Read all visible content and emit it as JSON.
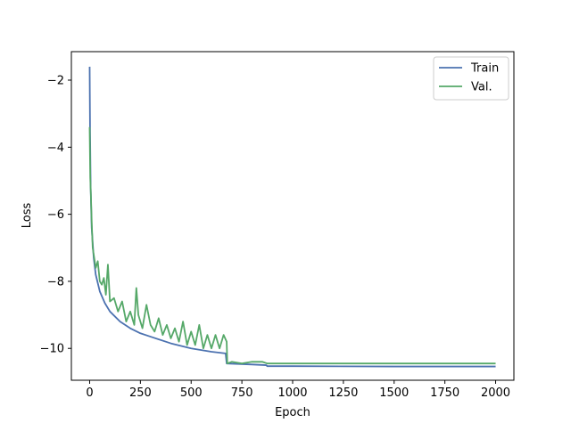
{
  "chart_data": {
    "type": "line",
    "title": "",
    "xlabel": "Epoch",
    "ylabel": "Loss",
    "xlim": [
      -90,
      2090
    ],
    "ylim": [
      -10.95,
      -1.15
    ],
    "x_ticks": [
      0,
      250,
      500,
      750,
      1000,
      1250,
      1500,
      1750,
      2000
    ],
    "y_ticks": [
      -10,
      -8,
      -6,
      -4,
      -2
    ],
    "y_tick_labels": [
      "−10",
      "−8",
      "−6",
      "−4",
      "−2"
    ],
    "grid": false,
    "legend": {
      "position": "top-right"
    },
    "series": [
      {
        "name": "Train",
        "color": "#4c72b0",
        "points": [
          [
            0,
            -1.6
          ],
          [
            2,
            -3.5
          ],
          [
            5,
            -5.2
          ],
          [
            10,
            -6.4
          ],
          [
            20,
            -7.3
          ],
          [
            30,
            -7.8
          ],
          [
            50,
            -8.3
          ],
          [
            75,
            -8.65
          ],
          [
            100,
            -8.9
          ],
          [
            150,
            -9.2
          ],
          [
            200,
            -9.4
          ],
          [
            250,
            -9.55
          ],
          [
            300,
            -9.65
          ],
          [
            400,
            -9.85
          ],
          [
            500,
            -10.0
          ],
          [
            600,
            -10.1
          ],
          [
            670,
            -10.15
          ],
          [
            675,
            -10.45
          ],
          [
            800,
            -10.48
          ],
          [
            870,
            -10.5
          ],
          [
            875,
            -10.53
          ],
          [
            1000,
            -10.53
          ],
          [
            1500,
            -10.54
          ],
          [
            2000,
            -10.54
          ]
        ]
      },
      {
        "name": "Val.",
        "color": "#55a868",
        "points": [
          [
            0,
            -3.4
          ],
          [
            3,
            -4.9
          ],
          [
            6,
            -5.4
          ],
          [
            10,
            -6.2
          ],
          [
            15,
            -7.0
          ],
          [
            20,
            -7.2
          ],
          [
            30,
            -7.6
          ],
          [
            40,
            -7.4
          ],
          [
            50,
            -8.0
          ],
          [
            60,
            -8.1
          ],
          [
            70,
            -7.9
          ],
          [
            80,
            -8.4
          ],
          [
            90,
            -7.5
          ],
          [
            100,
            -8.6
          ],
          [
            120,
            -8.5
          ],
          [
            140,
            -8.9
          ],
          [
            160,
            -8.6
          ],
          [
            180,
            -9.2
          ],
          [
            200,
            -8.9
          ],
          [
            220,
            -9.3
          ],
          [
            230,
            -8.2
          ],
          [
            240,
            -9.0
          ],
          [
            260,
            -9.4
          ],
          [
            280,
            -8.7
          ],
          [
            300,
            -9.3
          ],
          [
            320,
            -9.5
          ],
          [
            340,
            -9.1
          ],
          [
            360,
            -9.6
          ],
          [
            380,
            -9.3
          ],
          [
            400,
            -9.7
          ],
          [
            420,
            -9.4
          ],
          [
            440,
            -9.8
          ],
          [
            460,
            -9.2
          ],
          [
            480,
            -9.9
          ],
          [
            500,
            -9.5
          ],
          [
            520,
            -9.9
          ],
          [
            540,
            -9.3
          ],
          [
            560,
            -10.0
          ],
          [
            580,
            -9.6
          ],
          [
            600,
            -10.0
          ],
          [
            620,
            -9.6
          ],
          [
            640,
            -10.0
          ],
          [
            660,
            -9.6
          ],
          [
            675,
            -9.8
          ],
          [
            678,
            -10.45
          ],
          [
            700,
            -10.4
          ],
          [
            750,
            -10.45
          ],
          [
            800,
            -10.4
          ],
          [
            850,
            -10.4
          ],
          [
            875,
            -10.45
          ],
          [
            1000,
            -10.45
          ],
          [
            1500,
            -10.45
          ],
          [
            2000,
            -10.45
          ]
        ]
      }
    ]
  }
}
